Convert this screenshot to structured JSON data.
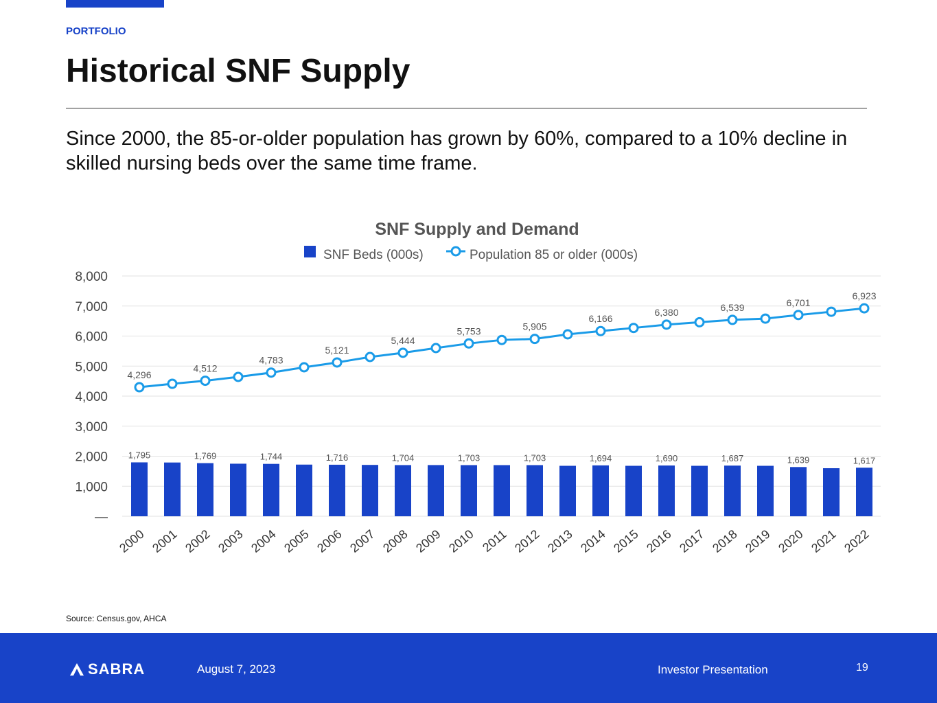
{
  "section": "PORTFOLIO",
  "title": "Historical SNF Supply",
  "subtitle": "Since 2000, the 85-or-older population has grown by 60%, compared to a 10% decline in skilled nursing beds over the same time frame.",
  "source": "Source: Census.gov, AHCA",
  "footer": {
    "logo": "SABRA",
    "date": "August 7, 2023",
    "presentation": "Investor Presentation",
    "page": "19"
  },
  "colors": {
    "bars": "#1843c8",
    "line": "#1a9be8",
    "accent": "#1843c8"
  },
  "chart_data": {
    "type": "bar+line",
    "title": "SNF Supply and Demand",
    "categories": [
      "2000",
      "2001",
      "2002",
      "2003",
      "2004",
      "2005",
      "2006",
      "2007",
      "2008",
      "2009",
      "2010",
      "2011",
      "2012",
      "2013",
      "2014",
      "2015",
      "2016",
      "2017",
      "2018",
      "2019",
      "2020",
      "2021",
      "2022"
    ],
    "series": [
      {
        "name": "SNF Beds (000s)",
        "type": "bar",
        "values": [
          1795,
          1790,
          1769,
          1750,
          1744,
          1720,
          1716,
          1710,
          1704,
          1705,
          1703,
          1703,
          1703,
          1680,
          1694,
          1680,
          1690,
          1680,
          1687,
          1680,
          1639,
          1600,
          1617
        ],
        "labels": [
          "1,795",
          "",
          "1,769",
          "",
          "1,744",
          "",
          "1,716",
          "",
          "1,704",
          "",
          "1,703",
          "",
          "1,703",
          "",
          "1,694",
          "",
          "1,690",
          "",
          "1,687",
          "",
          "1,639",
          "",
          "1,617"
        ]
      },
      {
        "name": "Population 85 or older (000s)",
        "type": "line",
        "values": [
          4296,
          4411,
          4512,
          4640,
          4783,
          4960,
          5121,
          5303,
          5444,
          5600,
          5753,
          5870,
          5905,
          6057,
          6166,
          6270,
          6380,
          6460,
          6539,
          6580,
          6701,
          6810,
          6923
        ],
        "labels": [
          "4,296",
          "",
          "4,512",
          "",
          "4,783",
          "",
          "5,121",
          "",
          "5,444",
          "",
          "5,753",
          "",
          "5,905",
          "",
          "6,166",
          "",
          "6,380",
          "",
          "6,539",
          "",
          "6,701",
          "",
          "6,923"
        ]
      }
    ],
    "yticks": [
      "—",
      "1,000",
      "2,000",
      "3,000",
      "4,000",
      "5,000",
      "6,000",
      "7,000",
      "8,000"
    ],
    "ylim": [
      0,
      8000
    ],
    "grid": true,
    "legend": "top-center"
  }
}
